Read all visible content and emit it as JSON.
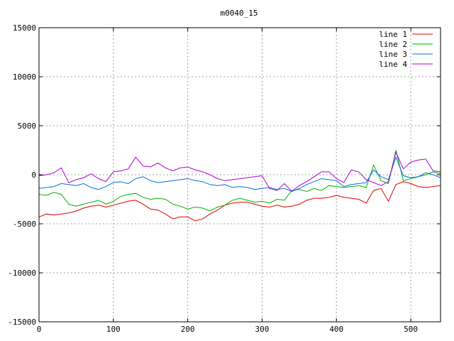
{
  "chart_data": {
    "type": "line",
    "title": "m0040_15",
    "xlabel": "",
    "ylabel": "",
    "xlim": [
      0,
      540
    ],
    "ylim": [
      -15000,
      15000
    ],
    "grid": true,
    "legend_position": "top-right",
    "x_ticks": [
      "0",
      "100",
      "200",
      "300",
      "400",
      "500"
    ],
    "y_ticks": [
      "15000",
      "10000",
      "5000",
      "0",
      "-5000",
      "-10000",
      "-15000"
    ],
    "x": [
      0,
      10,
      20,
      30,
      40,
      50,
      60,
      70,
      80,
      90,
      100,
      110,
      120,
      130,
      140,
      150,
      160,
      170,
      180,
      190,
      200,
      210,
      220,
      230,
      240,
      250,
      260,
      270,
      280,
      290,
      300,
      310,
      320,
      330,
      340,
      350,
      360,
      370,
      380,
      390,
      400,
      410,
      420,
      430,
      440,
      450,
      460,
      470,
      480,
      490,
      500,
      510,
      520,
      530,
      540
    ],
    "series": [
      {
        "name": "line 1",
        "color": "#e00000",
        "values": [
          -4300,
          -4000,
          -4100,
          -4000,
          -3900,
          -3700,
          -3400,
          -3200,
          -3100,
          -3300,
          -3100,
          -2900,
          -2700,
          -2600,
          -3000,
          -3500,
          -3600,
          -4000,
          -4500,
          -4300,
          -4300,
          -4700,
          -4500,
          -4000,
          -3600,
          -3100,
          -2900,
          -2800,
          -2800,
          -3000,
          -3200,
          -3300,
          -3100,
          -3300,
          -3200,
          -3000,
          -2600,
          -2400,
          -2400,
          -2300,
          -2100,
          -2300,
          -2400,
          -2500,
          -2900,
          -1600,
          -1400,
          -2700,
          -1000,
          -700,
          -900,
          -1200,
          -1300,
          -1200,
          -1100
        ]
      },
      {
        "name": "line 2",
        "color": "#00b000",
        "values": [
          -2000,
          -2100,
          -1800,
          -2000,
          -3000,
          -3200,
          -3000,
          -2800,
          -2600,
          -3000,
          -2700,
          -2200,
          -2000,
          -1900,
          -2300,
          -2500,
          -2400,
          -2500,
          -3000,
          -3200,
          -3500,
          -3300,
          -3400,
          -3700,
          -3300,
          -3100,
          -2600,
          -2400,
          -2600,
          -2800,
          -2700,
          -2900,
          -2500,
          -2600,
          -1600,
          -1500,
          -1700,
          -1400,
          -1600,
          -1100,
          -1200,
          -1300,
          -1200,
          -1100,
          -1300,
          1000,
          -600,
          -900,
          2500,
          -600,
          -400,
          -200,
          0,
          300,
          100
        ]
      },
      {
        "name": "line 3",
        "color": "#0070e0",
        "values": [
          -1400,
          -1300,
          -1200,
          -900,
          -1000,
          -1100,
          -900,
          -1300,
          -1500,
          -1200,
          -800,
          -700,
          -900,
          -400,
          -200,
          -600,
          -800,
          -700,
          -600,
          -500,
          -400,
          -600,
          -700,
          -1000,
          -1100,
          -1000,
          -1300,
          -1200,
          -1300,
          -1500,
          -1400,
          -1300,
          -1500,
          -1400,
          -1700,
          -1400,
          -1000,
          -700,
          -400,
          -500,
          -600,
          -1200,
          -1000,
          -900,
          -800,
          500,
          -200,
          -500,
          1800,
          -100,
          -300,
          -200,
          200,
          0,
          -300
        ]
      },
      {
        "name": "line 4",
        "color": "#b000d0",
        "values": [
          -100,
          0,
          200,
          700,
          -800,
          -500,
          -300,
          100,
          -400,
          -700,
          300,
          400,
          600,
          1800,
          900,
          800,
          1200,
          700,
          400,
          700,
          800,
          500,
          300,
          0,
          -400,
          -600,
          -500,
          -400,
          -300,
          -200,
          -100,
          -1400,
          -1600,
          -900,
          -1700,
          -1100,
          -700,
          -200,
          300,
          300,
          -400,
          -800,
          500,
          300,
          -500,
          -800,
          -1100,
          -700,
          2300,
          600,
          1300,
          1500,
          1600,
          400,
          300
        ]
      }
    ]
  }
}
